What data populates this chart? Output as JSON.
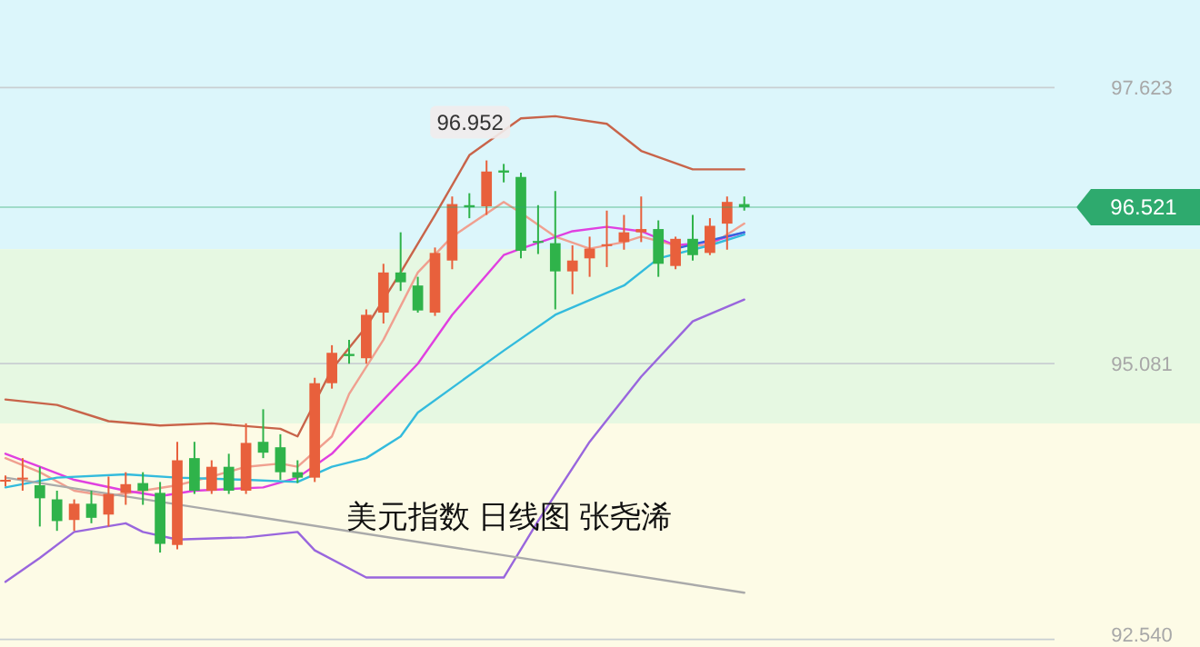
{
  "chart_data": {
    "type": "candlestick",
    "title": "美元指数 日线图 张尧浠",
    "categories": [
      null,
      null,
      null,
      null,
      null,
      null,
      null,
      null,
      null,
      null,
      null,
      null,
      null,
      null,
      null,
      null,
      null,
      null,
      null,
      null,
      null,
      null,
      null,
      null,
      null,
      null,
      null,
      null,
      null,
      null,
      null,
      null,
      null,
      null,
      null,
      null,
      null,
      null,
      null,
      null,
      null,
      null,
      null,
      null
    ],
    "ohlc": [
      [
        94.01,
        94.05,
        93.95,
        94.0
      ],
      [
        94.02,
        94.21,
        93.91,
        94.03
      ],
      [
        93.96,
        94.13,
        93.58,
        93.84
      ],
      [
        93.83,
        93.91,
        93.54,
        93.63
      ],
      [
        93.64,
        93.83,
        93.54,
        93.79
      ],
      [
        93.79,
        93.91,
        93.61,
        93.66
      ],
      [
        93.69,
        94.04,
        93.58,
        93.88
      ],
      [
        93.89,
        94.08,
        93.78,
        93.97
      ],
      [
        93.98,
        94.08,
        93.78,
        93.91
      ],
      [
        93.89,
        93.99,
        93.34,
        93.42
      ],
      [
        93.41,
        94.36,
        93.37,
        94.19
      ],
      [
        94.21,
        94.36,
        93.88,
        93.91
      ],
      [
        93.91,
        94.19,
        93.88,
        94.13
      ],
      [
        94.13,
        94.25,
        93.88,
        93.91
      ],
      [
        93.91,
        94.53,
        93.88,
        94.35
      ],
      [
        94.36,
        94.66,
        94.21,
        94.26
      ],
      [
        94.31,
        94.43,
        94.01,
        94.08
      ],
      [
        94.08,
        94.19,
        93.98,
        94.03
      ],
      [
        94.03,
        94.95,
        93.99,
        94.9
      ],
      [
        94.9,
        95.25,
        94.85,
        95.18
      ],
      [
        95.17,
        95.3,
        95.08,
        95.15
      ],
      [
        95.13,
        95.58,
        95.08,
        95.53
      ],
      [
        95.55,
        96.0,
        95.45,
        95.92
      ],
      [
        95.92,
        96.29,
        95.75,
        95.83
      ],
      [
        95.8,
        95.88,
        95.55,
        95.57
      ],
      [
        95.55,
        96.15,
        95.52,
        96.1
      ],
      [
        96.03,
        96.62,
        95.95,
        96.55
      ],
      [
        96.54,
        96.65,
        96.42,
        96.52
      ],
      [
        96.53,
        96.952,
        96.45,
        96.85
      ],
      [
        96.86,
        96.92,
        96.75,
        96.84
      ],
      [
        96.8,
        96.84,
        96.05,
        96.12
      ],
      [
        96.21,
        96.54,
        96.09,
        96.2
      ],
      [
        96.19,
        96.67,
        95.58,
        95.93
      ],
      [
        95.93,
        96.17,
        95.72,
        96.03
      ],
      [
        96.05,
        96.25,
        95.88,
        96.14
      ],
      [
        96.17,
        96.49,
        95.97,
        96.18
      ],
      [
        96.2,
        96.45,
        96.13,
        96.29
      ],
      [
        96.29,
        96.62,
        96.2,
        96.32
      ],
      [
        96.32,
        96.4,
        95.88,
        96.0
      ],
      [
        95.98,
        96.25,
        95.95,
        96.23
      ],
      [
        96.23,
        96.45,
        96.03,
        96.08
      ],
      [
        96.1,
        96.42,
        96.08,
        96.35
      ],
      [
        96.37,
        96.62,
        96.13,
        96.57
      ],
      [
        96.55,
        96.62,
        96.49,
        96.521
      ]
    ],
    "colors": [
      "#e8603c",
      "#e8603c",
      "#2fb34a",
      "#2fb34a",
      "#e8603c",
      "#2fb34a",
      "#e8603c",
      "#e8603c",
      "#2fb34a",
      "#2fb34a",
      "#e8603c",
      "#2fb34a",
      "#e8603c",
      "#2fb34a",
      "#e8603c",
      "#2fb34a",
      "#2fb34a",
      "#2fb34a",
      "#e8603c",
      "#e8603c",
      "#2fb34a",
      "#e8603c",
      "#e8603c",
      "#2fb34a",
      "#2fb34a",
      "#e8603c",
      "#e8603c",
      "#2fb34a",
      "#e8603c",
      "#2fb34a",
      "#2fb34a",
      "#2fb34a",
      "#2fb34a",
      "#e8603c",
      "#e8603c",
      "#e8603c",
      "#e8603c",
      "#e8603c",
      "#2fb34a",
      "#e8603c",
      "#2fb34a",
      "#e8603c",
      "#e8603c",
      "#2fb34a"
    ],
    "series": [
      {
        "type": "line",
        "color": "#c8644a",
        "values": [
          94.75,
          null,
          null,
          94.7,
          null,
          null,
          94.55,
          null,
          null,
          94.51,
          null,
          null,
          94.53,
          null,
          null,
          null,
          94.48,
          94.41,
          null,
          95.03,
          null,
          95.42,
          null,
          95.92,
          null,
          96.45,
          null,
          97.0,
          null,
          null,
          97.34,
          null,
          97.36,
          null,
          null,
          97.29,
          null,
          97.04,
          null,
          null,
          96.87,
          null,
          null,
          96.87
        ]
      },
      {
        "type": "line",
        "color": "#f0a090",
        "values": [
          94.21,
          null,
          94.08,
          null,
          93.91,
          null,
          93.86,
          null,
          93.91,
          null,
          93.96,
          null,
          94.04,
          null,
          94.13,
          null,
          94.16,
          94.13,
          null,
          94.41,
          94.8,
          null,
          95.3,
          null,
          95.92,
          null,
          96.25,
          null,
          null,
          96.57,
          96.47,
          null,
          96.25,
          null,
          96.14,
          null,
          96.2,
          96.25,
          null,
          96.17,
          null,
          96.17,
          null,
          96.37
        ]
      },
      {
        "type": "line",
        "color": "#e040e0",
        "values": [
          94.25,
          null,
          94.13,
          null,
          94.01,
          null,
          null,
          93.91,
          null,
          93.86,
          null,
          93.91,
          null,
          null,
          null,
          93.94,
          null,
          94.03,
          null,
          94.25,
          null,
          94.58,
          null,
          null,
          95.08,
          null,
          95.53,
          null,
          null,
          96.08,
          96.14,
          null,
          null,
          96.3,
          null,
          96.34,
          null,
          96.3,
          null,
          96.17,
          null,
          96.2,
          null,
          96.29
        ]
      },
      {
        "type": "line",
        "color": "#33bbdd",
        "values": [
          93.94,
          null,
          null,
          94.03,
          null,
          null,
          null,
          94.06,
          null,
          null,
          94.03,
          null,
          null,
          null,
          94.01,
          null,
          null,
          93.99,
          null,
          94.13,
          null,
          94.21,
          null,
          94.41,
          94.63,
          null,
          null,
          null,
          null,
          95.2,
          null,
          null,
          95.53,
          null,
          null,
          null,
          95.8,
          null,
          96.05,
          null,
          null,
          96.17,
          null,
          96.27
        ]
      },
      {
        "type": "line",
        "color": "#9966dd",
        "values": [
          93.07,
          null,
          93.29,
          null,
          93.53,
          null,
          null,
          93.61,
          93.53,
          null,
          93.46,
          null,
          null,
          null,
          93.48,
          null,
          null,
          93.53,
          93.36,
          null,
          null,
          93.11,
          null,
          null,
          null,
          null,
          null,
          null,
          null,
          93.11,
          null,
          93.63,
          null,
          null,
          94.36,
          null,
          null,
          94.96,
          null,
          null,
          95.47,
          null,
          null,
          95.67
        ]
      },
      {
        "type": "line",
        "color": "#3366dd",
        "values": [
          null,
          null,
          null,
          null,
          null,
          null,
          null,
          null,
          null,
          null,
          null,
          null,
          null,
          null,
          null,
          null,
          null,
          null,
          null,
          null,
          null,
          null,
          null,
          null,
          null,
          null,
          null,
          null,
          null,
          null,
          null,
          null,
          null,
          null,
          null,
          null,
          null,
          null,
          null,
          96.14,
          null,
          null,
          null,
          96.29
        ]
      },
      {
        "type": "line",
        "color": "#aaaaaa",
        "values": [
          94.03,
          null,
          null,
          null,
          null,
          null,
          null,
          null,
          null,
          null,
          null,
          null,
          null,
          null,
          null,
          null,
          null,
          null,
          null,
          null,
          null,
          null,
          null,
          null,
          null,
          null,
          null,
          null,
          null,
          null,
          null,
          null,
          null,
          null,
          null,
          null,
          null,
          null,
          null,
          null,
          null,
          null,
          null,
          92.97
        ]
      }
    ],
    "ylim": [
      92.47,
      98.43
    ],
    "yticks": [
      {
        "value": 92.54,
        "label": "92.540"
      },
      95.081,
      97.623
    ],
    "tick_labels": "y",
    "grid": "y",
    "bands": [
      {
        "axis": "y",
        "from": 96.135,
        "to": 98.43,
        "color": "#dcf6fb"
      },
      {
        "axis": "y",
        "from": 94.529,
        "to": 96.135,
        "color": "#e6f8e2"
      },
      {
        "axis": "y",
        "from": 92.47,
        "to": 94.529,
        "color": "#fdfbe6"
      }
    ],
    "ref_lines": [
      {
        "axis": "y",
        "value": 96.521,
        "label": "96.521",
        "color": "#2eaa6e"
      }
    ],
    "annotations": [
      {
        "text": "96.952",
        "y": 96.952
      }
    ]
  }
}
